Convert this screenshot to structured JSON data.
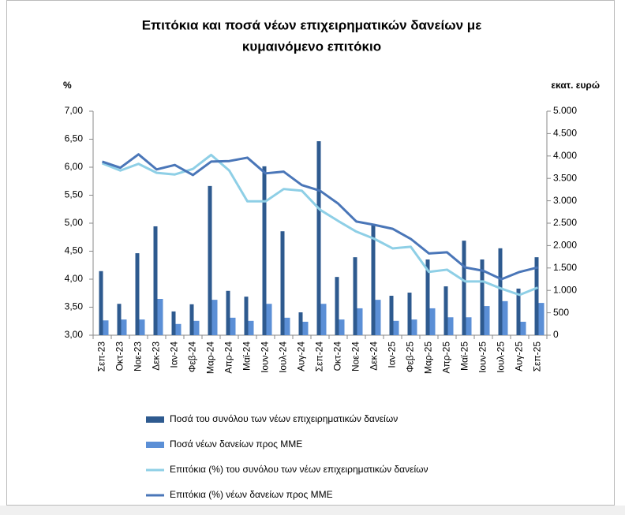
{
  "chart_data": {
    "type": "bar_line",
    "title": [
      "Επιτόκια και ποσά νέων επιχειρηματικών δανείων με",
      "κυμαινόμενο επιτόκιο"
    ],
    "y_label": "%",
    "y2_label": "εκατ. ευρώ",
    "categories": [
      "Σεπ-23",
      "Οκτ-23",
      "Νοε-23",
      "Δεκ-23",
      "Ιαν-24",
      "Φεβ-24",
      "Μαρ-24",
      "Απρ-24",
      "Μαϊ-24",
      "Ιουν-24",
      "Ιουλ-24",
      "Αυγ-24",
      "Σεπ-24",
      "Οκτ-24",
      "Νοε-24",
      "Δεκ-24",
      "Ιαν-25",
      "Φεβ-25",
      "Μαρ-25",
      "Απρ-25",
      "Μαϊ-25",
      "Ιουν-25",
      "Ιουλ-25",
      "Αυγ-25",
      "Σεπ-25"
    ],
    "series": [
      {
        "name": "Ποσά του συνόλου των νέων επιχειρηματικών δανείων",
        "type": "bar",
        "axis": "y2",
        "color": "#2e5a8f",
        "values": [
          1430,
          700,
          1830,
          2430,
          530,
          690,
          3330,
          990,
          860,
          3770,
          2320,
          510,
          4330,
          1300,
          1740,
          2460,
          880,
          950,
          1690,
          1090,
          2110,
          1690,
          1940,
          1040,
          1740
        ]
      },
      {
        "name": "Ποσά νέων δανείων προς ΜΜΕ",
        "type": "bar",
        "axis": "y2",
        "color": "#5b8fd6",
        "values": [
          330,
          350,
          350,
          810,
          250,
          320,
          790,
          390,
          320,
          700,
          390,
          300,
          700,
          350,
          600,
          790,
          320,
          350,
          600,
          400,
          400,
          650,
          760,
          300,
          720
        ]
      },
      {
        "name": "Επιτόκια (%) του συνόλου των νέων επιχειρηματικών δανείων",
        "type": "line",
        "axis": "y",
        "color": "#8ecfe6",
        "values": [
          6.07,
          5.94,
          6.06,
          5.9,
          5.87,
          5.97,
          6.22,
          5.94,
          5.39,
          5.39,
          5.61,
          5.58,
          5.24,
          5.04,
          4.85,
          4.72,
          4.55,
          4.58,
          4.13,
          4.17,
          3.96,
          3.96,
          3.83,
          3.72,
          3.85
        ]
      },
      {
        "name": "Επιτόκια (%) νέων δανείων προς ΜΜΕ",
        "type": "line",
        "axis": "y",
        "color": "#4a76b8",
        "values": [
          6.1,
          5.99,
          6.23,
          5.96,
          6.04,
          5.86,
          6.1,
          6.11,
          6.17,
          5.89,
          5.92,
          5.68,
          5.58,
          5.35,
          5.03,
          4.97,
          4.9,
          4.72,
          4.46,
          4.48,
          4.21,
          4.15,
          4.0,
          4.13,
          4.21
        ]
      }
    ],
    "ylim": [
      3,
      7
    ],
    "yticks": [
      {
        "value": 3,
        "label": "3,00"
      },
      {
        "value": 3.5,
        "label": "3,50"
      },
      {
        "value": 4,
        "label": "4,00"
      },
      {
        "value": 4.5,
        "label": "4,50"
      },
      {
        "value": 5,
        "label": "5,00"
      },
      {
        "value": 5.5,
        "label": "5,50"
      },
      {
        "value": 6,
        "label": "6,00"
      },
      {
        "value": 6.5,
        "label": "6,50"
      },
      {
        "value": 7,
        "label": "7,00"
      }
    ],
    "y2lim": [
      0,
      5000
    ],
    "y2ticks": [
      0,
      {
        "value": 500,
        "label": "500"
      },
      {
        "value": 1000,
        "label": "1.000"
      },
      {
        "value": 1500,
        "label": "1.500"
      },
      {
        "value": 2000,
        "label": "2.000"
      },
      {
        "value": 2500,
        "label": "2.500"
      },
      {
        "value": 3000,
        "label": "3.000"
      },
      {
        "value": 3500,
        "label": "3.500"
      },
      {
        "value": 4000,
        "label": "4.000"
      },
      {
        "value": 4500,
        "label": "4.500"
      },
      {
        "value": 5000,
        "label": "5.000"
      }
    ],
    "legend": "bottom"
  }
}
